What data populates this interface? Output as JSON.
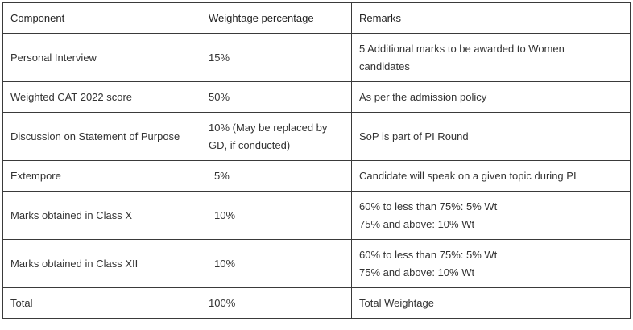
{
  "table": {
    "headers": [
      "Component",
      "Weightage percentage",
      "Remarks"
    ],
    "rows": [
      {
        "component": "Personal Interview",
        "weightage": "15%",
        "remarks": [
          "5 Additional marks to be awarded to Women",
          "candidates"
        ]
      },
      {
        "component": "Weighted CAT 2022 score",
        "weightage": "50%",
        "remarks": [
          "As per the admission policy"
        ]
      },
      {
        "component": "Discussion on Statement of Purpose",
        "weightage_lines": [
          "10% (May be replaced by",
          "GD, if conducted)"
        ],
        "remarks": [
          "SoP is part of PI Round"
        ]
      },
      {
        "component": "Extempore",
        "weightage": "5%",
        "remarks": [
          "Candidate will speak on a given topic during PI"
        ]
      },
      {
        "component": "Marks obtained in Class X",
        "weightage": "10%",
        "remarks": [
          "60% to less than 75%: 5% Wt",
          "75% and above: 10% Wt"
        ]
      },
      {
        "component": "Marks obtained in Class XII",
        "weightage": "10%",
        "remarks": [
          "60% to less than 75%: 5% Wt",
          "75% and above: 10% Wt"
        ]
      },
      {
        "component": "Total",
        "weightage": "100%",
        "remarks": [
          "Total Weightage"
        ]
      }
    ]
  }
}
